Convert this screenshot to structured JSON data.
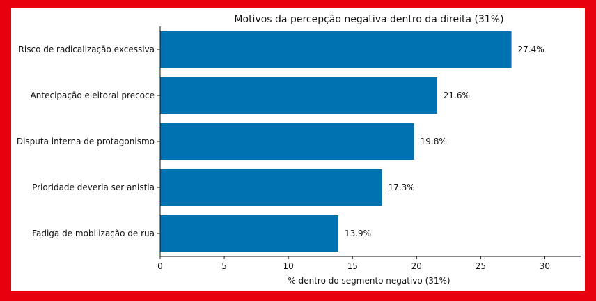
{
  "chart_data": {
    "type": "bar",
    "orientation": "horizontal",
    "title": "Motivos da percepção negativa dentro da direita (31%)",
    "xlabel": "% dentro do segmento negativo (31%)",
    "ylabel": "",
    "categories": [
      "Risco de radicalização excessiva",
      "Antecipação eleitoral precoce",
      "Disputa interna de protagonismo",
      "Prioridade deveria ser anistia",
      "Fadiga de mobilização de rua"
    ],
    "values": [
      27.4,
      21.6,
      19.8,
      17.3,
      13.9
    ],
    "value_labels": [
      "27.4%",
      "21.6%",
      "19.8%",
      "17.3%",
      "13.9%"
    ],
    "xlim": [
      0,
      32.8
    ],
    "xticks": [
      0,
      5,
      10,
      15,
      20,
      25,
      30
    ],
    "bar_color": "#0072b2",
    "border_color": "#e8000f",
    "grid": false
  }
}
